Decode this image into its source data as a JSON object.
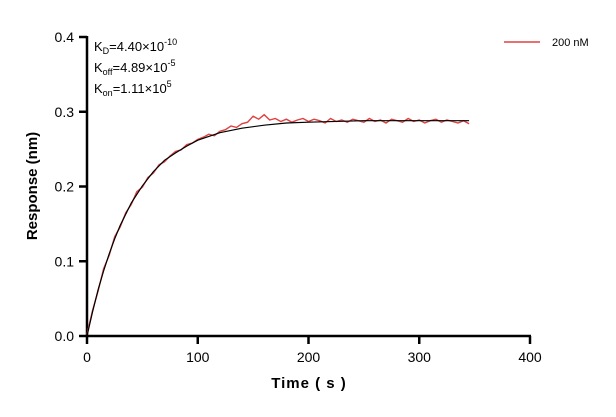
{
  "chart_data": {
    "type": "line",
    "xlabel": "Time ( s )",
    "ylabel": "Response (nm)",
    "xlim": [
      0,
      400
    ],
    "ylim": [
      0,
      0.4
    ],
    "xticks": [
      0,
      100,
      200,
      300,
      400
    ],
    "yticks": [
      "0.0",
      "0.1",
      "0.2",
      "0.3",
      "0.4"
    ],
    "grid": false,
    "legend_position": "top-right",
    "annotations": [
      {
        "base": "K",
        "sub": "D",
        "text": "=4.40×10",
        "sup": "-10"
      },
      {
        "base": "K",
        "sub": "off",
        "text": "=4.89×10",
        "sup": "-5"
      },
      {
        "base": "K",
        "sub": "on",
        "text": "=1.11×10",
        "sup": "5"
      }
    ],
    "series": [
      {
        "name": "200 nM",
        "color": "#e04040",
        "x": [
          0,
          5,
          10,
          15,
          20,
          25,
          30,
          35,
          40,
          45,
          50,
          55,
          60,
          65,
          70,
          75,
          80,
          85,
          90,
          95,
          100,
          105,
          110,
          115,
          120,
          125,
          130,
          135,
          140,
          145,
          150,
          155,
          160,
          165,
          170,
          175,
          180,
          185,
          190,
          195,
          200,
          205,
          210,
          215,
          220,
          225,
          230,
          235,
          240,
          245,
          250,
          255,
          260,
          265,
          270,
          275,
          280,
          285,
          290,
          295,
          300,
          305,
          310,
          315,
          320,
          325,
          330,
          335,
          340,
          345
        ],
        "y": [
          0.002,
          0.034,
          0.06,
          0.09,
          0.108,
          0.133,
          0.146,
          0.165,
          0.176,
          0.193,
          0.199,
          0.212,
          0.218,
          0.229,
          0.233,
          0.241,
          0.247,
          0.249,
          0.256,
          0.258,
          0.263,
          0.266,
          0.27,
          0.268,
          0.274,
          0.276,
          0.281,
          0.279,
          0.284,
          0.286,
          0.294,
          0.29,
          0.296,
          0.289,
          0.291,
          0.287,
          0.29,
          0.286,
          0.289,
          0.291,
          0.287,
          0.29,
          0.288,
          0.285,
          0.291,
          0.287,
          0.289,
          0.286,
          0.29,
          0.288,
          0.286,
          0.291,
          0.287,
          0.289,
          0.285,
          0.29,
          0.288,
          0.286,
          0.291,
          0.287,
          0.289,
          0.285,
          0.288,
          0.29,
          0.286,
          0.289,
          0.287,
          0.285,
          0.288,
          0.284
        ]
      },
      {
        "color": "#000000",
        "x": [
          0,
          5,
          10,
          15,
          20,
          25,
          30,
          40,
          50,
          60,
          70,
          80,
          90,
          100,
          120,
          140,
          160,
          180,
          200,
          250,
          300,
          345
        ],
        "y": [
          0,
          0.032,
          0.062,
          0.087,
          0.11,
          0.13,
          0.148,
          0.178,
          0.201,
          0.22,
          0.235,
          0.245,
          0.254,
          0.262,
          0.272,
          0.278,
          0.282,
          0.285,
          0.286,
          0.288,
          0.288,
          0.288
        ]
      }
    ]
  }
}
